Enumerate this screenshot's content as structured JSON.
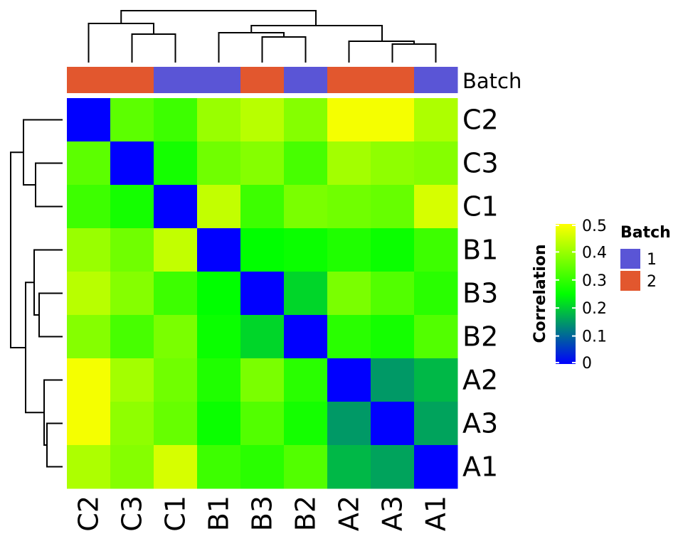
{
  "chart_data": {
    "type": "heatmap",
    "title": "",
    "rows": [
      "C2",
      "C3",
      "C1",
      "B1",
      "B3",
      "B2",
      "A2",
      "A3",
      "A1"
    ],
    "columns": [
      "C2",
      "C3",
      "C1",
      "B1",
      "B3",
      "B2",
      "A2",
      "A3",
      "A1"
    ],
    "values": [
      [
        0.0,
        0.34,
        0.31,
        0.4,
        0.43,
        0.38,
        0.49,
        0.49,
        0.42
      ],
      [
        0.34,
        0.0,
        0.27,
        0.36,
        0.38,
        0.32,
        0.41,
        0.39,
        0.38
      ],
      [
        0.31,
        0.27,
        0.0,
        0.44,
        0.31,
        0.37,
        0.36,
        0.35,
        0.46
      ],
      [
        0.4,
        0.36,
        0.44,
        0.0,
        0.25,
        0.26,
        0.28,
        0.26,
        0.31
      ],
      [
        0.43,
        0.38,
        0.31,
        0.25,
        0.0,
        0.21,
        0.37,
        0.33,
        0.29
      ],
      [
        0.38,
        0.32,
        0.37,
        0.26,
        0.21,
        0.0,
        0.29,
        0.27,
        0.33
      ],
      [
        0.49,
        0.41,
        0.36,
        0.28,
        0.37,
        0.29,
        0.0,
        0.15,
        0.18
      ],
      [
        0.49,
        0.39,
        0.35,
        0.26,
        0.33,
        0.27,
        0.15,
        0.0,
        0.16
      ],
      [
        0.42,
        0.38,
        0.46,
        0.31,
        0.29,
        0.33,
        0.18,
        0.16,
        0.0
      ]
    ],
    "color_scale": {
      "stops": [
        {
          "value": 0.0,
          "color": "#0000ff"
        },
        {
          "value": 0.15,
          "color": "#009966"
        },
        {
          "value": 0.25,
          "color": "#00ff00"
        },
        {
          "value": 0.5,
          "color": "#ffff00"
        }
      ],
      "range": [
        0,
        0.5
      ]
    },
    "legend": {
      "title": "Correlation",
      "ticks": [
        {
          "value": 0.5,
          "label": "0.5"
        },
        {
          "value": 0.4,
          "label": "0.4"
        },
        {
          "value": 0.3,
          "label": "0.3"
        },
        {
          "value": 0.2,
          "label": "0.2"
        },
        {
          "value": 0.1,
          "label": "0.1"
        },
        {
          "value": 0.0,
          "label": "0"
        }
      ],
      "placement": "right"
    },
    "annotation": {
      "name": "Batch",
      "values": [
        "2",
        "2",
        "1",
        "1",
        "2",
        "1",
        "2",
        "2",
        "1"
      ],
      "colors": {
        "1": "#5a55d6",
        "2": "#e2572e"
      },
      "legend_entries": [
        {
          "key": "1",
          "label": "1"
        },
        {
          "key": "2",
          "label": "2"
        }
      ]
    },
    "row_dendrogram": true,
    "column_dendrogram": true
  }
}
